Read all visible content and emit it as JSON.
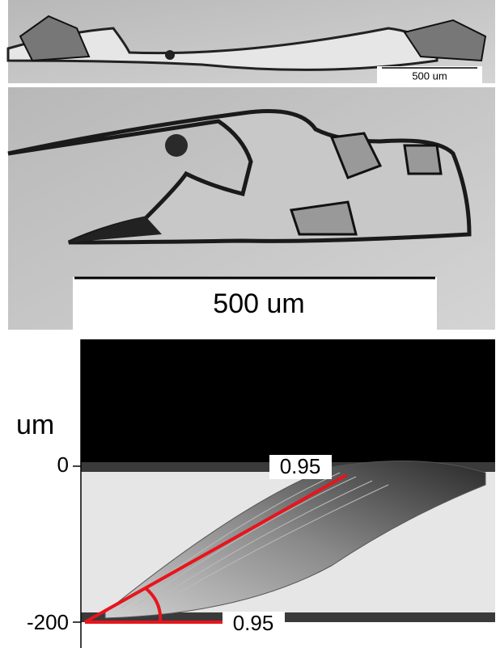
{
  "panels": {
    "top": {
      "scale_label": "500 um"
    },
    "middle": {
      "scale_label": "500 um"
    },
    "bottom": {
      "y_axis_label": "um",
      "yticks": [
        "0",
        "-200"
      ],
      "annotations": [
        "0.95",
        "0.95"
      ]
    }
  }
}
